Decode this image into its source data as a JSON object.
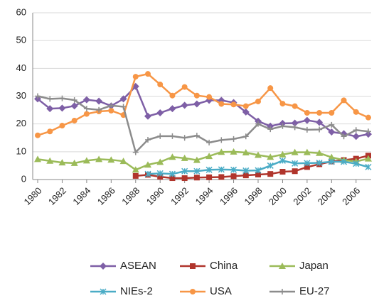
{
  "chart_data": {
    "type": "line",
    "x": [
      1980,
      1981,
      1982,
      1983,
      1984,
      1985,
      1986,
      1987,
      1988,
      1989,
      1990,
      1991,
      1992,
      1993,
      1994,
      1995,
      1996,
      1997,
      1998,
      1999,
      2000,
      2001,
      2002,
      2003,
      2004,
      2005,
      2006,
      2007
    ],
    "xlim": [
      1980,
      2007
    ],
    "xticks": [
      1980,
      1982,
      1984,
      1986,
      1988,
      1990,
      1992,
      1994,
      1996,
      1998,
      2000,
      2002,
      2004,
      2006
    ],
    "ylim": [
      0,
      60
    ],
    "yticks": [
      0,
      10,
      20,
      30,
      40,
      50,
      60
    ],
    "grid": true,
    "legend": "bottom",
    "series": [
      {
        "name": "ASEAN",
        "color": "#7e5fa6",
        "marker": "diamond",
        "values": [
          29,
          25.5,
          25.7,
          26.5,
          28.7,
          28.2,
          26.5,
          29,
          33.5,
          22.8,
          24,
          25.5,
          26.7,
          27.2,
          28.5,
          28.5,
          27.7,
          24.3,
          21,
          19.2,
          20.2,
          20.3,
          21.3,
          20.6,
          17.1,
          16.5,
          15.5,
          16.3
        ]
      },
      {
        "name": "China",
        "color": "#b0352c",
        "marker": "square",
        "values": [
          null,
          null,
          null,
          null,
          null,
          null,
          null,
          null,
          1.3,
          1.7,
          1,
          0.5,
          0.5,
          0.7,
          0.8,
          0.9,
          1.2,
          1.5,
          1.8,
          2,
          2.8,
          3,
          4.5,
          5.5,
          6.5,
          7,
          7.5,
          8.6
        ]
      },
      {
        "name": "Japan",
        "color": "#9bbb59",
        "marker": "triangle",
        "values": [
          7.3,
          6.7,
          6.1,
          5.9,
          6.8,
          7.3,
          7.1,
          6.6,
          3.5,
          5.3,
          6.3,
          8.1,
          7.7,
          7,
          8.4,
          9.9,
          10,
          9.7,
          8.8,
          8.1,
          9,
          9.8,
          9.8,
          9.5,
          8,
          7,
          6.5,
          7.5
        ]
      },
      {
        "name": "NIEs-2",
        "color": "#4bacc6",
        "marker": "star",
        "values": [
          null,
          null,
          null,
          null,
          null,
          null,
          null,
          null,
          null,
          2,
          2.2,
          2,
          3,
          3,
          3.5,
          3.6,
          3.5,
          3.2,
          3.3,
          5,
          6.8,
          5.8,
          5.9,
          6,
          6.4,
          6.4,
          5.7,
          4.5
        ]
      },
      {
        "name": "USA",
        "color": "#f79646",
        "marker": "circle",
        "values": [
          15.9,
          17.3,
          19.4,
          21.2,
          23.6,
          24.5,
          24.8,
          23.2,
          37,
          38,
          34.2,
          30.2,
          33.3,
          30.2,
          29.7,
          27.2,
          27,
          26.4,
          28.1,
          32.9,
          27.3,
          26.4,
          24,
          24,
          24,
          28.5,
          24.3,
          22.3
        ]
      },
      {
        "name": "EU-27",
        "color": "#8c8c8c",
        "marker": "plus",
        "values": [
          30,
          29,
          29.2,
          28.6,
          25.5,
          25.1,
          26.6,
          26.2,
          9.8,
          14.3,
          15.6,
          15.6,
          15,
          15.8,
          13.3,
          14.2,
          14.6,
          15.5,
          20,
          18.1,
          19.2,
          18.8,
          17.9,
          18,
          19.7,
          15.5,
          17.8,
          17.3
        ]
      }
    ]
  }
}
